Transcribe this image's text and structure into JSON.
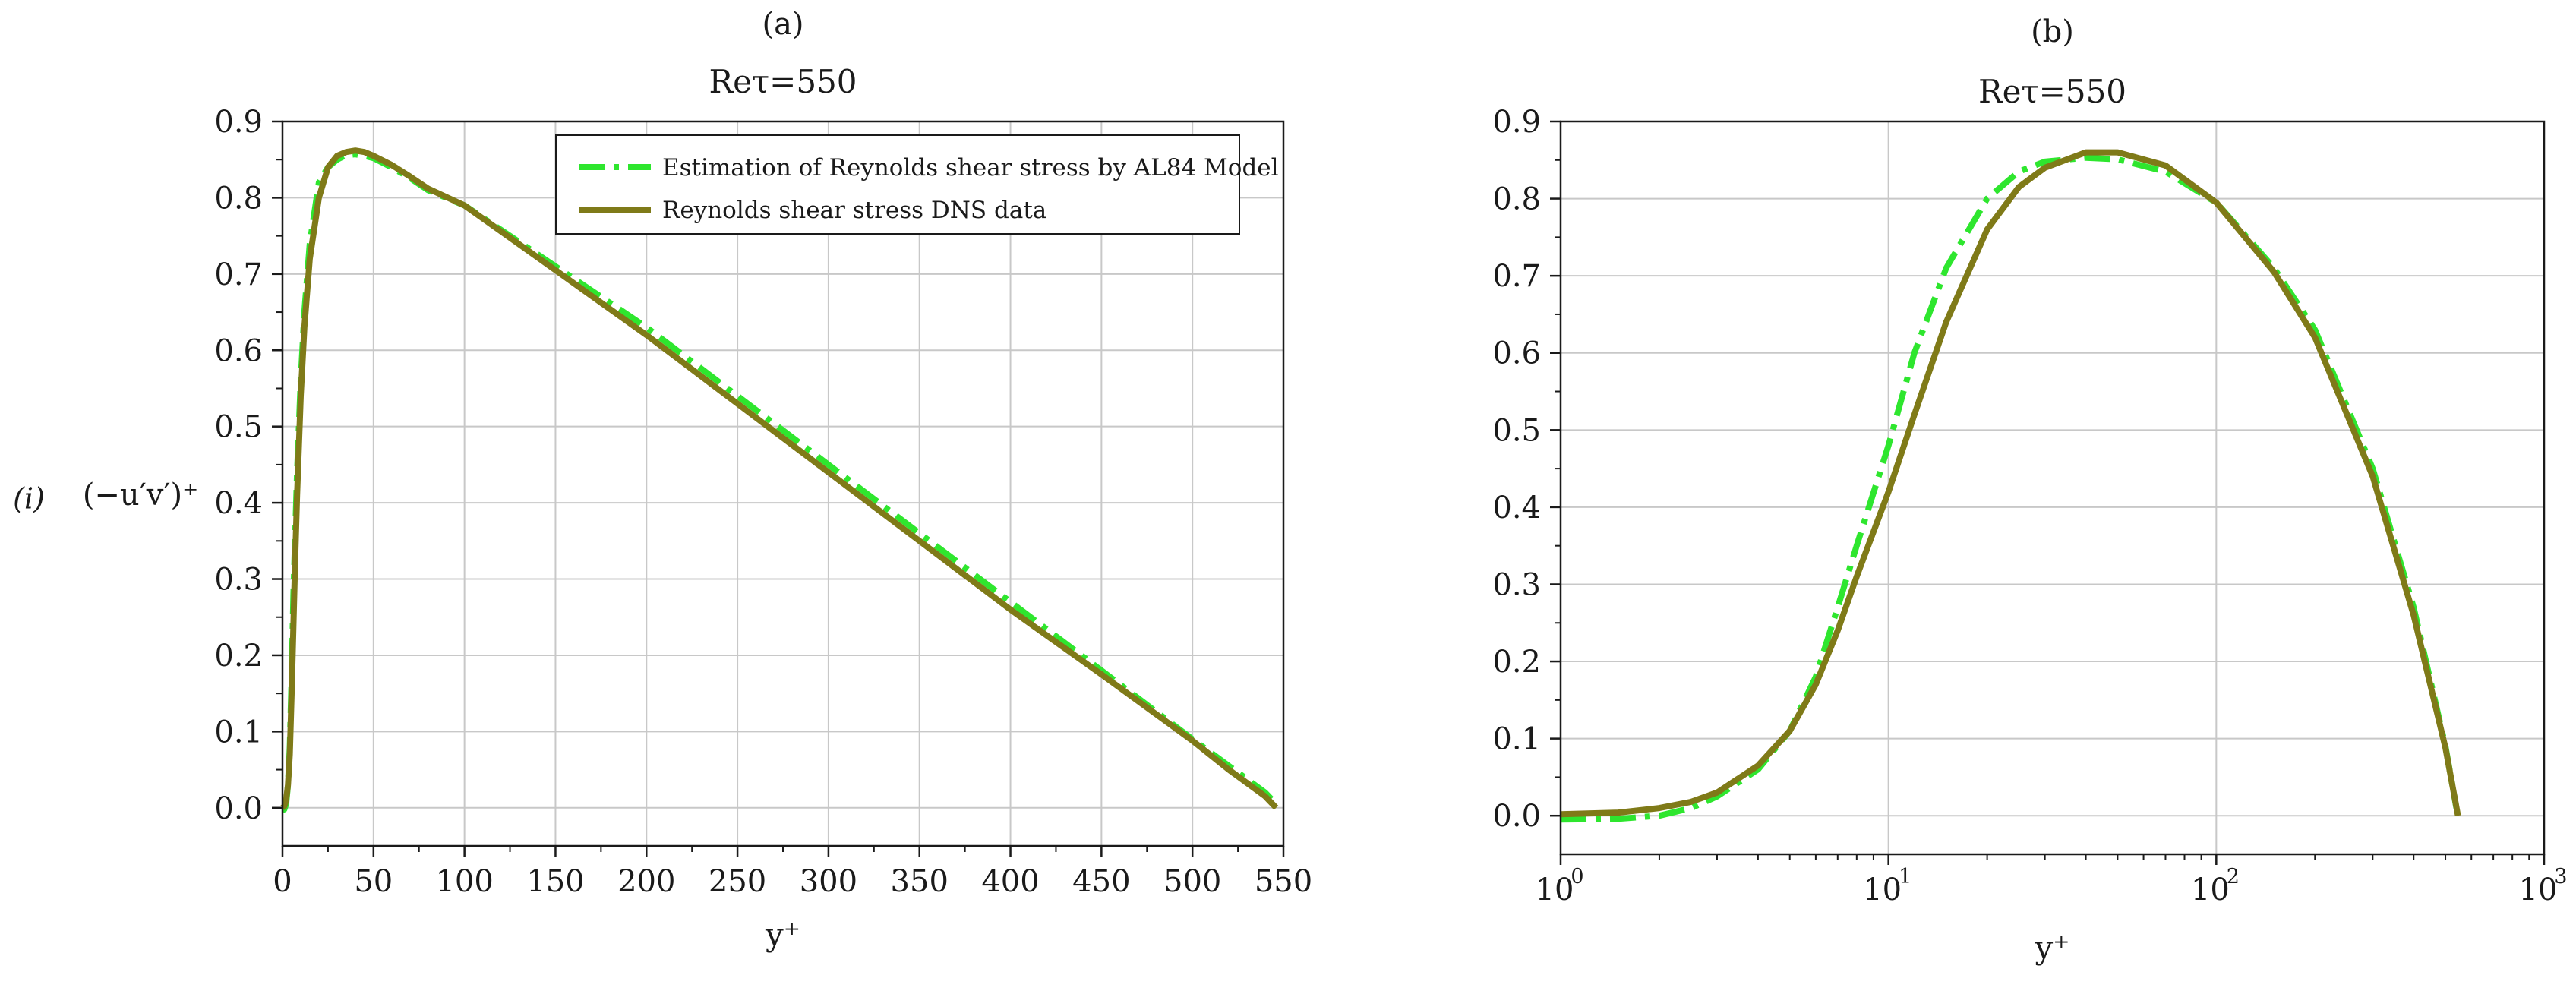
{
  "figure": {
    "row_label": "(i)",
    "ylabel": "(−u′v′)⁺"
  },
  "colors": {
    "model": "#2ee62e",
    "dns": "#7f7a18",
    "grid": "#c8c8c8",
    "axis": "#1a1a1a"
  },
  "chart_data": [
    {
      "panel_label": "(a)",
      "type": "line",
      "title": "Reτ=550",
      "xlabel": "y⁺",
      "xscale": "linear",
      "xlim": [
        0,
        550
      ],
      "ylim": [
        -0.05,
        0.9
      ],
      "xticks": [
        0,
        50,
        100,
        150,
        200,
        250,
        300,
        350,
        400,
        450,
        500,
        550
      ],
      "xtick_labels": [
        "0",
        "50",
        "100",
        "150",
        "200",
        "250",
        "300",
        "350",
        "400",
        "450",
        "500",
        "550"
      ],
      "yticks": [
        0.0,
        0.1,
        0.2,
        0.3,
        0.4,
        0.5,
        0.6,
        0.7,
        0.8,
        0.9
      ],
      "ytick_labels": [
        "0.0",
        "0.1",
        "0.2",
        "0.3",
        "0.4",
        "0.5",
        "0.6",
        "0.7",
        "0.8",
        "0.9"
      ],
      "grid": true,
      "legend_position": "top-right",
      "series": [
        {
          "name": "Estimation of Reynolds shear stress by AL84 Model",
          "style": "dash-dot",
          "x": [
            0,
            1,
            2,
            3,
            4,
            5,
            6,
            7,
            8,
            10,
            12,
            15,
            20,
            25,
            30,
            35,
            40,
            45,
            50,
            60,
            70,
            80,
            100,
            150,
            200,
            250,
            300,
            350,
            400,
            450,
            500,
            520,
            540,
            546
          ],
          "y": [
            -0.003,
            -0.002,
            0.005,
            0.03,
            0.08,
            0.17,
            0.28,
            0.36,
            0.44,
            0.56,
            0.65,
            0.74,
            0.82,
            0.84,
            0.85,
            0.856,
            0.857,
            0.855,
            0.852,
            0.84,
            0.826,
            0.81,
            0.79,
            0.71,
            0.63,
            0.54,
            0.45,
            0.36,
            0.27,
            0.18,
            0.09,
            0.055,
            0.02,
            0.005
          ]
        },
        {
          "name": "Reynolds shear stress DNS data",
          "style": "solid",
          "x": [
            0,
            1,
            2,
            3,
            4,
            5,
            6,
            7,
            8,
            10,
            12,
            15,
            20,
            25,
            30,
            35,
            40,
            45,
            50,
            60,
            70,
            80,
            100,
            150,
            200,
            250,
            300,
            350,
            400,
            450,
            500,
            520,
            540,
            546
          ],
          "y": [
            0.0,
            0.002,
            0.01,
            0.03,
            0.07,
            0.15,
            0.24,
            0.33,
            0.41,
            0.54,
            0.63,
            0.72,
            0.8,
            0.84,
            0.855,
            0.86,
            0.862,
            0.86,
            0.855,
            0.843,
            0.828,
            0.812,
            0.79,
            0.705,
            0.62,
            0.53,
            0.44,
            0.35,
            0.26,
            0.175,
            0.088,
            0.05,
            0.015,
            0.0
          ]
        }
      ]
    },
    {
      "panel_label": "(b)",
      "type": "line",
      "title": "Reτ=550",
      "xlabel": "y⁺",
      "xscale": "log",
      "xlim": [
        1,
        1000
      ],
      "ylim": [
        -0.05,
        0.9
      ],
      "xticks": [
        1,
        10,
        100,
        1000
      ],
      "xtick_labels": [
        "10",
        "10",
        "10",
        "10"
      ],
      "xtick_exponents": [
        "0",
        "1",
        "2",
        "3"
      ],
      "yticks": [
        0.0,
        0.1,
        0.2,
        0.3,
        0.4,
        0.5,
        0.6,
        0.7,
        0.8,
        0.9
      ],
      "ytick_labels": [
        "0.0",
        "0.1",
        "0.2",
        "0.3",
        "0.4",
        "0.5",
        "0.6",
        "0.7",
        "0.8",
        "0.9"
      ],
      "grid": true,
      "series": [
        {
          "name": "Estimation of Reynolds shear stress by AL84 Model",
          "style": "dash-dot",
          "x": [
            1,
            1.5,
            2,
            2.5,
            3,
            4,
            5,
            6,
            7,
            8,
            10,
            12,
            15,
            20,
            25,
            30,
            40,
            50,
            70,
            100,
            150,
            200,
            300,
            400,
            500,
            540
          ],
          "y": [
            -0.005,
            -0.004,
            0.0,
            0.01,
            0.025,
            0.06,
            0.11,
            0.18,
            0.27,
            0.35,
            0.48,
            0.6,
            0.71,
            0.8,
            0.835,
            0.848,
            0.853,
            0.851,
            0.835,
            0.795,
            0.71,
            0.63,
            0.45,
            0.27,
            0.09,
            0.01
          ]
        },
        {
          "name": "Reynolds shear stress DNS data",
          "style": "solid",
          "x": [
            1,
            1.5,
            2,
            2.5,
            3,
            4,
            5,
            6,
            7,
            8,
            10,
            12,
            15,
            20,
            25,
            30,
            40,
            50,
            70,
            100,
            150,
            200,
            300,
            400,
            500,
            546
          ],
          "y": [
            0.002,
            0.004,
            0.01,
            0.018,
            0.03,
            0.065,
            0.11,
            0.17,
            0.24,
            0.31,
            0.42,
            0.52,
            0.64,
            0.76,
            0.815,
            0.84,
            0.86,
            0.86,
            0.843,
            0.795,
            0.705,
            0.62,
            0.44,
            0.26,
            0.088,
            0.0
          ]
        }
      ]
    }
  ]
}
